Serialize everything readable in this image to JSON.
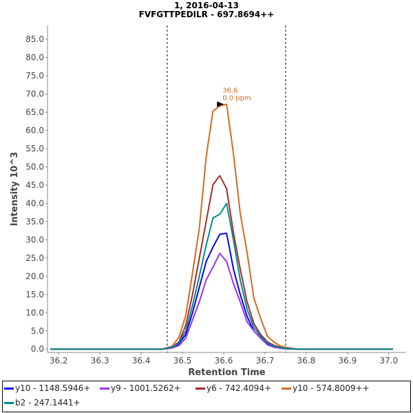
{
  "title": "1, 2016-04-13",
  "subtitle": "FVFGTTPEDILR - 697.8694++",
  "chart_data": {
    "type": "line",
    "xlabel": "Retention Time",
    "ylabel": "Intensity 10^3",
    "xlim": [
      36.173,
      37.042
    ],
    "ylim": [
      -0.9,
      88.8
    ],
    "xticks": [
      "36.2",
      "36.3",
      "36.4",
      "36.5",
      "36.6",
      "36.7",
      "36.8",
      "36.9",
      "37.0"
    ],
    "yticks": [
      "0.0",
      "5.0",
      "10.0",
      "15.0",
      "20.0",
      "25.0",
      "30.0",
      "35.0",
      "40.0",
      "45.0",
      "50.0",
      "55.0",
      "60.0",
      "65.0",
      "70.0",
      "75.0",
      "80.0",
      "85.0"
    ],
    "grid": false,
    "integration_bounds": [
      36.463,
      36.75
    ],
    "annotation": {
      "x": 36.607,
      "y": 67.2,
      "lines": [
        "36.6",
        "0.0 ppm"
      ],
      "color": "#d2691e"
    },
    "x": [
      36.18,
      36.45,
      36.475,
      36.4915,
      36.508,
      36.5245,
      36.541,
      36.5575,
      36.574,
      36.5905,
      36.607,
      36.6235,
      36.64,
      36.6565,
      36.673,
      36.6895,
      36.706,
      36.7225,
      36.739,
      36.7555,
      36.78,
      37.01
    ],
    "series": [
      {
        "name": "y10 - 1148.5946+",
        "color": "#0000ff",
        "values": [
          0,
          0,
          0.4,
          1.5,
          4,
          10,
          17,
          24,
          28,
          31.5,
          31.8,
          22,
          15,
          9,
          5,
          3,
          1.5,
          0.7,
          0.3,
          0.1,
          0,
          0
        ]
      },
      {
        "name": "y9 - 1001.5262+",
        "color": "#9a32f0",
        "values": [
          0,
          0,
          0.3,
          1,
          3,
          8,
          13,
          19,
          22.5,
          26.3,
          24,
          18,
          13,
          7.5,
          5,
          3,
          1.2,
          0.5,
          0.2,
          0.1,
          0,
          0
        ]
      },
      {
        "name": "y6 - 742.4094+",
        "color": "#a52a2a",
        "values": [
          0,
          0,
          0.5,
          2,
          6.5,
          15,
          25,
          35,
          45.1,
          47.6,
          44,
          32,
          22,
          13,
          7,
          4,
          2,
          1,
          0.5,
          0.2,
          0,
          0
        ]
      },
      {
        "name": "y10 - 574.8009++",
        "color": "#d2691e",
        "values": [
          0,
          0,
          0.8,
          3.3,
          9.2,
          20.9,
          33.2,
          52.7,
          65.3,
          66.7,
          67.2,
          53.7,
          37.3,
          26.6,
          14,
          8.4,
          3.5,
          1.9,
          0.8,
          0.4,
          0,
          0
        ]
      },
      {
        "name": "b2 - 247.1441+",
        "color": "#008b8b",
        "values": [
          0,
          0,
          0.5,
          1.8,
          5,
          12,
          20,
          28.5,
          36,
          37,
          40,
          30,
          19,
          11,
          6,
          3.5,
          1.8,
          0.8,
          0.4,
          0.2,
          0,
          0
        ]
      }
    ]
  }
}
